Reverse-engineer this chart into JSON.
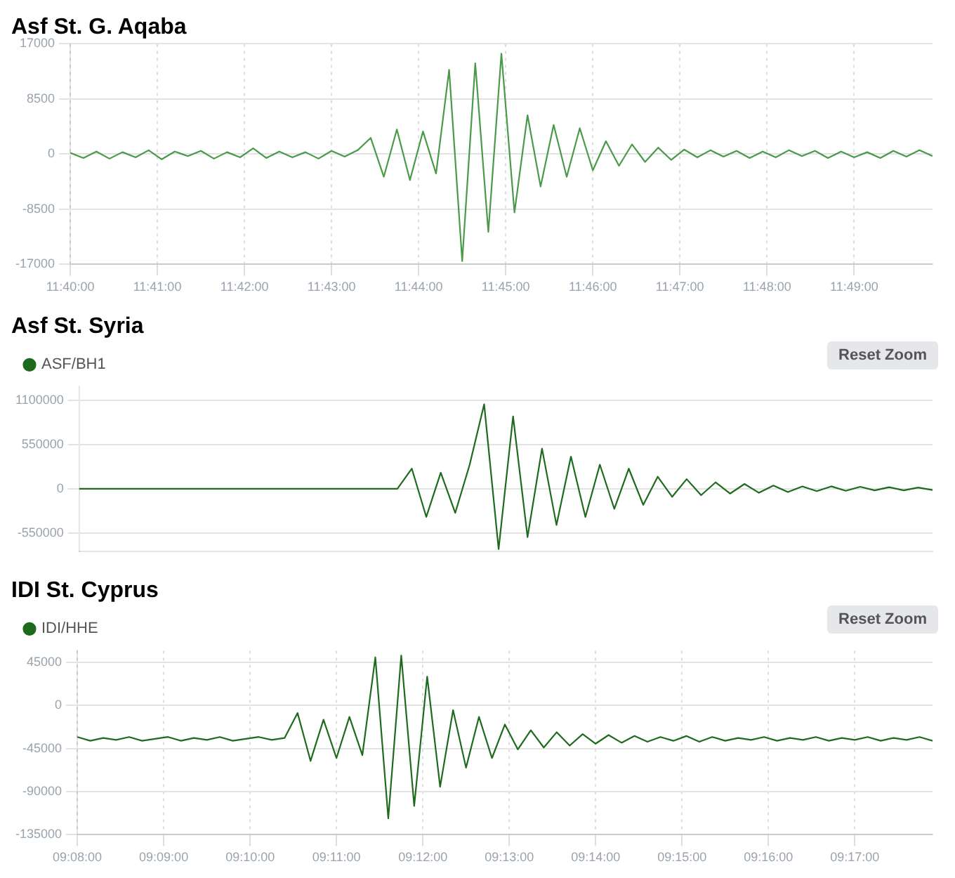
{
  "chart_data": [
    {
      "type": "line",
      "title": "Asf St. G. Aqaba",
      "x": [
        11.66667,
        11.66917,
        11.67167,
        11.67417,
        11.67667,
        11.67917,
        11.68167,
        11.68417,
        11.68667,
        11.68917,
        11.69167,
        11.69417,
        11.69667,
        11.69917,
        11.70167,
        11.70417,
        11.70667,
        11.70917,
        11.71167,
        11.71417,
        11.71667,
        11.71917,
        11.72167,
        11.72417,
        11.72667,
        11.72917,
        11.73167,
        11.73417,
        11.73667,
        11.73917,
        11.74167,
        11.74417,
        11.74667,
        11.74917,
        11.75167,
        11.75417,
        11.75667,
        11.75917,
        11.76167,
        11.76417,
        11.76667,
        11.76917,
        11.77167,
        11.77417,
        11.77667,
        11.77917,
        11.78167,
        11.78417,
        11.78667,
        11.78917,
        11.79167,
        11.79417,
        11.79667,
        11.79917,
        11.80167,
        11.80417,
        11.80667,
        11.80917,
        11.81167,
        11.81417,
        11.81667,
        11.81917,
        11.82167,
        11.82417,
        11.82667,
        11.82917,
        11.83167
      ],
      "series": [
        {
          "color": "#4a9a4a",
          "values": [
            200,
            -600,
            400,
            -700,
            300,
            -500,
            600,
            -800,
            400,
            -300,
            500,
            -700,
            300,
            -500,
            900,
            -600,
            400,
            -500,
            300,
            -700,
            500,
            -400,
            600,
            2500,
            -3500,
            3800,
            -4000,
            3500,
            -3000,
            13000,
            -16500,
            14000,
            -12000,
            15500,
            -9000,
            6000,
            -5000,
            4500,
            -3500,
            4000,
            -2500,
            2000,
            -1800,
            1500,
            -1200,
            1000,
            -900,
            700,
            -500,
            600,
            -400,
            500,
            -600,
            400,
            -500,
            600,
            -300,
            500,
            -600,
            400,
            -500,
            300,
            -600,
            500,
            -400,
            600,
            -300
          ]
        }
      ],
      "xlim": [
        11.66667,
        11.83167
      ],
      "xticks": [
        {
          "value": 11.66667,
          "label": "11:40:00"
        },
        {
          "value": 11.68333,
          "label": "11:41:00"
        },
        {
          "value": 11.7,
          "label": "11:42:00"
        },
        {
          "value": 11.71667,
          "label": "11:43:00"
        },
        {
          "value": 11.73333,
          "label": "11:44:00"
        },
        {
          "value": 11.75,
          "label": "11:45:00"
        },
        {
          "value": 11.76667,
          "label": "11:46:00"
        },
        {
          "value": 11.78333,
          "label": "11:47:00"
        },
        {
          "value": 11.8,
          "label": "11:48:00"
        },
        {
          "value": 11.81667,
          "label": "11:49:00"
        }
      ],
      "ylim": [
        -17000,
        17000
      ],
      "yticks": [
        -17000,
        -8500,
        0,
        8500,
        17000
      ],
      "grid": true
    },
    {
      "type": "line",
      "title": "Asf St. Syria",
      "categories": [
        null,
        null,
        null,
        null,
        null,
        null,
        null,
        null,
        null,
        null,
        null,
        null,
        null,
        null,
        null,
        null,
        null,
        null,
        null,
        null,
        null,
        null,
        null,
        null,
        null,
        null,
        null,
        null,
        null,
        null,
        null,
        null,
        null,
        null,
        null,
        null,
        null,
        null,
        null,
        null,
        null,
        null,
        null,
        null,
        null,
        null,
        null,
        null,
        null,
        null,
        null,
        null,
        null,
        null,
        null,
        null,
        null,
        null,
        null,
        null
      ],
      "series": [
        {
          "name": "ASF/BH1",
          "color": "#1e6b1e",
          "values": [
            0,
            0,
            0,
            0,
            0,
            0,
            0,
            0,
            0,
            0,
            0,
            0,
            0,
            0,
            0,
            0,
            0,
            0,
            0,
            0,
            0,
            0,
            0,
            250000,
            -350000,
            200000,
            -300000,
            300000,
            1050000,
            -750000,
            900000,
            -600000,
            500000,
            -450000,
            400000,
            -350000,
            300000,
            -250000,
            250000,
            -200000,
            150000,
            -100000,
            120000,
            -80000,
            80000,
            -60000,
            60000,
            -50000,
            40000,
            -40000,
            30000,
            -30000,
            30000,
            -25000,
            25000,
            -20000,
            20000,
            -20000,
            15000,
            -15000
          ]
        }
      ],
      "ylim": [
        -780000,
        1270000
      ],
      "yticks": [
        -550000,
        0,
        550000,
        1100000
      ],
      "tick_labels": "y",
      "grid": "y",
      "legend": "top left",
      "annotations": [
        "Reset Zoom"
      ]
    },
    {
      "type": "line",
      "title": "IDI St. Cyprus",
      "x": [
        9.13333,
        9.13583,
        9.13833,
        9.14083,
        9.14333,
        9.14583,
        9.14833,
        9.15083,
        9.15333,
        9.15583,
        9.15833,
        9.16083,
        9.16333,
        9.16583,
        9.16833,
        9.17083,
        9.17333,
        9.17583,
        9.17833,
        9.18083,
        9.18333,
        9.18583,
        9.18833,
        9.19083,
        9.19333,
        9.19583,
        9.19833,
        9.20083,
        9.20333,
        9.20583,
        9.20833,
        9.21083,
        9.21333,
        9.21583,
        9.21833,
        9.22083,
        9.22333,
        9.22583,
        9.22833,
        9.23083,
        9.23333,
        9.23583,
        9.23833,
        9.24083,
        9.24333,
        9.24583,
        9.24833,
        9.25083,
        9.25333,
        9.25583,
        9.25833,
        9.26083,
        9.26333,
        9.26583,
        9.26833,
        9.27083,
        9.27333,
        9.27583,
        9.27833,
        9.28083,
        9.28333,
        9.28583,
        9.28833,
        9.29083,
        9.29333,
        9.29583,
        9.29833
      ],
      "series": [
        {
          "name": "IDI/HHE",
          "color": "#1e6b1e",
          "values": [
            -33000,
            -37000,
            -34000,
            -36000,
            -33000,
            -37000,
            -35000,
            -33000,
            -37000,
            -34000,
            -36000,
            -33000,
            -37000,
            -35000,
            -33000,
            -36000,
            -34000,
            -8000,
            -58000,
            -15000,
            -55000,
            -12000,
            -52000,
            50000,
            -118000,
            52000,
            -105000,
            30000,
            -85000,
            -5000,
            -65000,
            -12000,
            -55000,
            -20000,
            -46000,
            -26000,
            -44000,
            -28000,
            -42000,
            -30000,
            -40000,
            -31000,
            -39000,
            -32000,
            -38000,
            -33000,
            -37000,
            -32000,
            -38000,
            -33000,
            -37000,
            -34000,
            -36000,
            -33000,
            -37000,
            -34000,
            -36000,
            -33000,
            -37000,
            -34000,
            -36000,
            -33000,
            -37000,
            -34000,
            -36000,
            -33000,
            -37000
          ]
        }
      ],
      "xlim": [
        9.13333,
        9.29833
      ],
      "xticks": [
        {
          "value": 9.13333,
          "label": "09:08:00"
        },
        {
          "value": 9.15,
          "label": "09:09:00"
        },
        {
          "value": 9.16667,
          "label": "09:10:00"
        },
        {
          "value": 9.18333,
          "label": "09:11:00"
        },
        {
          "value": 9.2,
          "label": "09:12:00"
        },
        {
          "value": 9.21667,
          "label": "09:13:00"
        },
        {
          "value": 9.23333,
          "label": "09:14:00"
        },
        {
          "value": 9.25,
          "label": "09:15:00"
        },
        {
          "value": 9.26667,
          "label": "09:16:00"
        },
        {
          "value": 9.28333,
          "label": "09:17:00"
        }
      ],
      "ylim": [
        -135000,
        57000
      ],
      "yticks": [
        -135000,
        -90000,
        -45000,
        0,
        45000
      ],
      "grid": true,
      "legend": "top left",
      "annotations": [
        "Reset Zoom"
      ]
    }
  ]
}
